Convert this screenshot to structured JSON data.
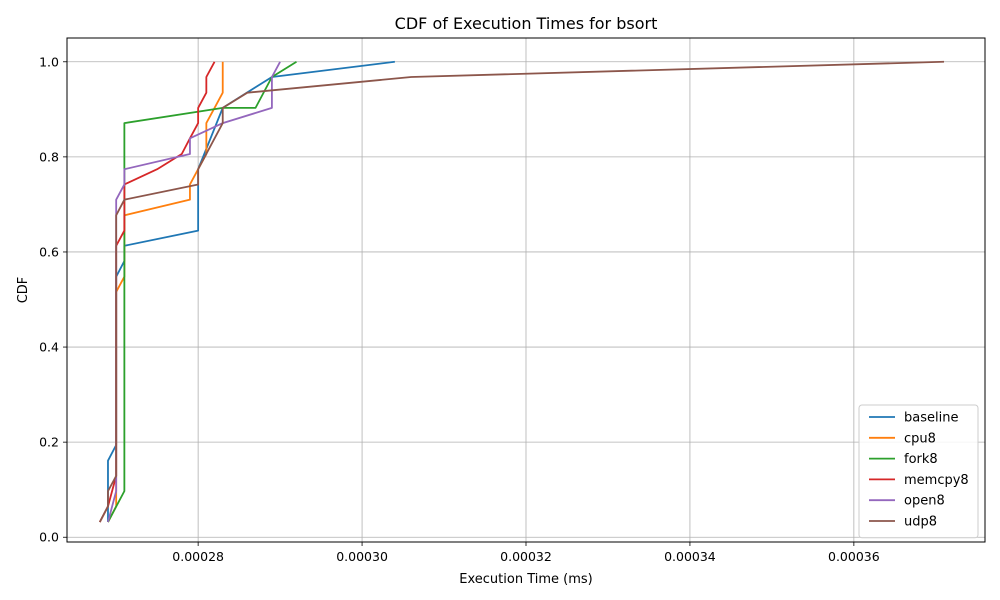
{
  "chart_data": {
    "type": "line",
    "title": "CDF of Execution Times for bsort",
    "xlabel": "Execution Time (ms)",
    "ylabel": "CDF",
    "xlim": [
      0.000264,
      0.000376
    ],
    "ylim": [
      -0.01,
      1.05
    ],
    "x_ticks": [
      0.00028,
      0.0003,
      0.00032,
      0.00034,
      0.00036
    ],
    "x_tick_labels": [
      "0.00028",
      "0.00030",
      "0.00032",
      "0.00034",
      "0.00036"
    ],
    "y_ticks": [
      0.0,
      0.2,
      0.4,
      0.6,
      0.8,
      1.0
    ],
    "y_tick_labels": [
      "0.0",
      "0.2",
      "0.4",
      "0.6",
      "0.8",
      "1.0"
    ],
    "grid": true,
    "legend_position": "lower-right",
    "series": [
      {
        "name": "baseline",
        "color": "#1f77b4",
        "points": [
          [
            0.000269,
            0.032
          ],
          [
            0.000269,
            0.161
          ],
          [
            0.00027,
            0.194
          ],
          [
            0.00027,
            0.548
          ],
          [
            0.000271,
            0.581
          ],
          [
            0.000271,
            0.613
          ],
          [
            0.00028,
            0.645
          ],
          [
            0.00028,
            0.774
          ],
          [
            0.000283,
            0.903
          ],
          [
            0.000289,
            0.968
          ],
          [
            0.000304,
            1.0
          ]
        ]
      },
      {
        "name": "cpu8",
        "color": "#ff7f0e",
        "points": [
          [
            0.000269,
            0.032
          ],
          [
            0.00027,
            0.065
          ],
          [
            0.00027,
            0.516
          ],
          [
            0.000271,
            0.548
          ],
          [
            0.000271,
            0.677
          ],
          [
            0.000279,
            0.71
          ],
          [
            0.000279,
            0.742
          ],
          [
            0.00028,
            0.774
          ],
          [
            0.000281,
            0.806
          ],
          [
            0.000281,
            0.871
          ],
          [
            0.000282,
            0.903
          ],
          [
            0.000283,
            0.935
          ],
          [
            0.000283,
            1.0
          ]
        ]
      },
      {
        "name": "fork8",
        "color": "#2ca02c",
        "points": [
          [
            0.000269,
            0.032
          ],
          [
            0.000271,
            0.097
          ],
          [
            0.000271,
            0.871
          ],
          [
            0.000283,
            0.903
          ],
          [
            0.000287,
            0.903
          ],
          [
            0.000289,
            0.968
          ],
          [
            0.000292,
            1.0
          ]
        ]
      },
      {
        "name": "memcpy8",
        "color": "#d62728",
        "points": [
          [
            0.000268,
            0.032
          ],
          [
            0.000269,
            0.065
          ],
          [
            0.00027,
            0.129
          ],
          [
            0.00027,
            0.613
          ],
          [
            0.000271,
            0.645
          ],
          [
            0.000271,
            0.742
          ],
          [
            0.000275,
            0.774
          ],
          [
            0.000278,
            0.806
          ],
          [
            0.000279,
            0.839
          ],
          [
            0.00028,
            0.871
          ],
          [
            0.00028,
            0.903
          ],
          [
            0.000281,
            0.935
          ],
          [
            0.000281,
            0.968
          ],
          [
            0.000282,
            1.0
          ]
        ]
      },
      {
        "name": "open8",
        "color": "#9467bd",
        "points": [
          [
            0.000269,
            0.032
          ],
          [
            0.00027,
            0.097
          ],
          [
            0.00027,
            0.71
          ],
          [
            0.000271,
            0.742
          ],
          [
            0.000271,
            0.774
          ],
          [
            0.000279,
            0.806
          ],
          [
            0.000279,
            0.839
          ],
          [
            0.000283,
            0.871
          ],
          [
            0.000289,
            0.903
          ],
          [
            0.000289,
            0.968
          ],
          [
            0.00029,
            1.0
          ]
        ]
      },
      {
        "name": "udp8",
        "color": "#8c564b",
        "points": [
          [
            0.000268,
            0.032
          ],
          [
            0.000269,
            0.065
          ],
          [
            0.000269,
            0.097
          ],
          [
            0.00027,
            0.129
          ],
          [
            0.00027,
            0.677
          ],
          [
            0.000271,
            0.71
          ],
          [
            0.00028,
            0.742
          ],
          [
            0.00028,
            0.774
          ],
          [
            0.000283,
            0.871
          ],
          [
            0.000283,
            0.903
          ],
          [
            0.000286,
            0.935
          ],
          [
            0.000306,
            0.968
          ],
          [
            0.000371,
            1.0
          ]
        ]
      }
    ]
  }
}
